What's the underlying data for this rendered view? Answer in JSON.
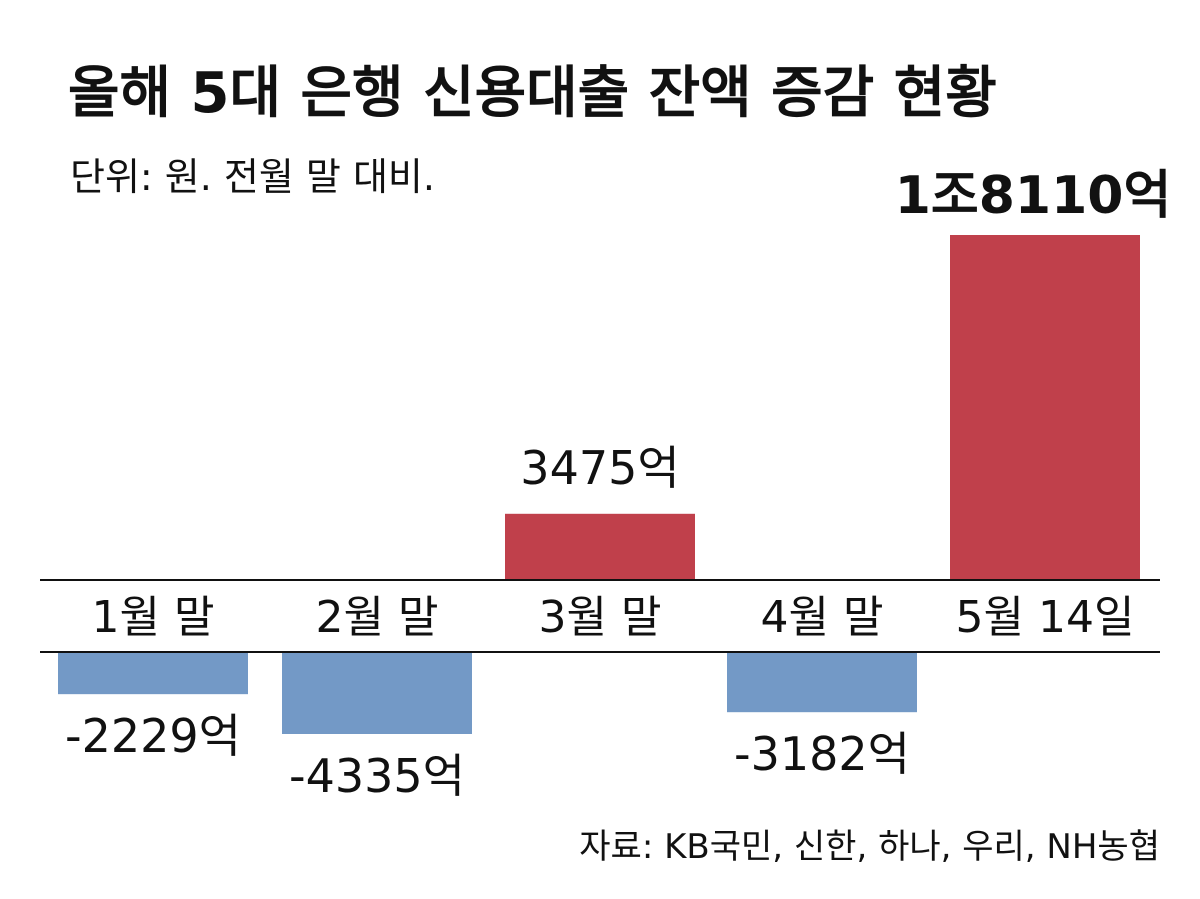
{
  "title": "올해 5대 은행 신용대출 잔액 증감 현황",
  "subtitle": "단위: 원. 전월 말 대비.",
  "source": "자료: KB국민, 신한, 하나, 우리, NH농협",
  "colors": {
    "positive": "#c0404b",
    "negative": "#7399c6",
    "highlight_label": "#c0404b",
    "text": "#111111"
  },
  "chart_data": {
    "type": "bar",
    "categories": [
      "1월 말",
      "2월 말",
      "3월 말",
      "4월 말",
      "5월 14일"
    ],
    "values": [
      -2229,
      -4335,
      3475,
      -3182,
      18110
    ],
    "data_labels": [
      "-2229억",
      "-4335억",
      "3475억",
      "-3182억",
      "1조8110억"
    ],
    "unit": "억원",
    "highlight_index": 4,
    "title": "올해 5대 은행 신용대출 잔액 증감 현황",
    "xlabel": "",
    "ylabel": "",
    "grid": false,
    "legend": "none"
  }
}
